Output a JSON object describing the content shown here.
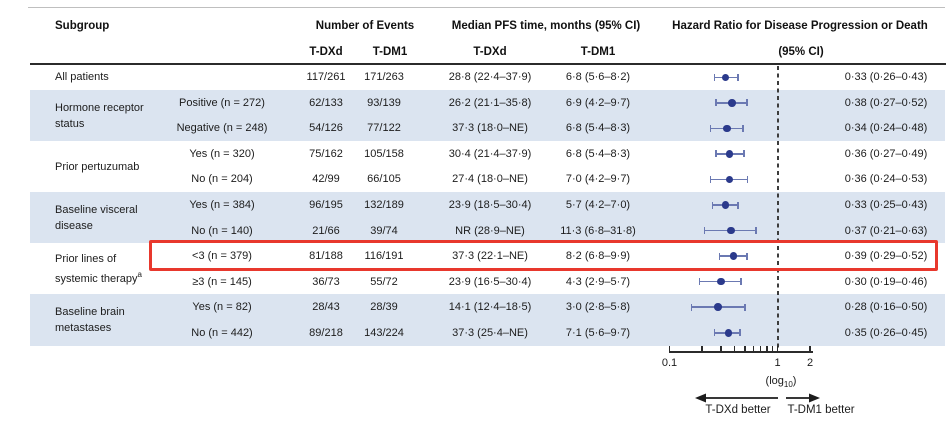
{
  "header": {
    "subgroup": "Subgroup",
    "events": "Number of Events",
    "median": "Median PFS time, months (95% CI)",
    "hazard": "Hazard Ratio for Disease Progression or Death",
    "hazard_ci": "(95% CI)",
    "col_tdxd": "T-DXd",
    "col_tdm1": "T-DM1"
  },
  "colors": {
    "row_shade": "#dbe4f0",
    "marker_navy": "#2b3a8c",
    "ci_line": "#6b79b2",
    "highlight_red": "#e8382d"
  },
  "chart_data": {
    "type": "scatter",
    "subtype": "forest-plot",
    "title": "Hazard Ratio for Disease Progression or Death",
    "x_axis": {
      "scale": "log10",
      "range": [
        0.1,
        2.2
      ],
      "ticks": [
        0.1,
        0.2,
        0.3,
        0.4,
        0.5,
        0.6,
        0.7,
        0.8,
        0.9,
        1,
        2
      ],
      "labeled_ticks": {
        "0.1": "0.1",
        "1": "1",
        "2": "2"
      },
      "scale_label_pre": "(log",
      "scale_label_sub": "10",
      "scale_label_post": ")",
      "reference_line": 1
    },
    "arrows": {
      "left_better": "T-DXd better",
      "right_better": "T-DM1 better"
    },
    "groups": [
      {
        "lines": [
          "All patients"
        ],
        "sup": "",
        "start": 0,
        "span": 1
      },
      {
        "lines": [
          "Hormone receptor",
          "status"
        ],
        "sup": "",
        "start": 1,
        "span": 2
      },
      {
        "lines": [
          "Prior pertuzumab"
        ],
        "sup": "",
        "start": 3,
        "span": 2
      },
      {
        "lines": [
          "Baseline visceral",
          "disease"
        ],
        "sup": "",
        "start": 5,
        "span": 2
      },
      {
        "lines": [
          "Prior lines of",
          "systemic therapy"
        ],
        "sup": "a",
        "start": 7,
        "span": 2
      },
      {
        "lines": [
          "Baseline brain",
          "metastases"
        ],
        "sup": "",
        "start": 9,
        "span": 2
      }
    ],
    "rows": [
      {
        "subgroup": "",
        "events_tdxd": "117/261",
        "events_tdm1": "171/263",
        "median_tdxd": "28·8 (22·4–37·9)",
        "median_tdm1": "6·8 (5·6–8·2)",
        "hr": 0.33,
        "ci_low": 0.26,
        "ci_high": 0.43,
        "hr_label": "0·33 (0·26–0·43)",
        "shaded": false,
        "highlighted": false
      },
      {
        "subgroup": "Positive (n = 272)",
        "events_tdxd": "62/133",
        "events_tdm1": "93/139",
        "median_tdxd": "26·2 (21·1–35·8)",
        "median_tdm1": "6·9 (4·2–9·7)",
        "hr": 0.38,
        "ci_low": 0.27,
        "ci_high": 0.52,
        "hr_label": "0·38 (0·27–0·52)",
        "shaded": true,
        "highlighted": false
      },
      {
        "subgroup": "Negative (n = 248)",
        "events_tdxd": "54/126",
        "events_tdm1": "77/122",
        "median_tdxd": "37·3 (18·0–NE)",
        "median_tdm1": "6·8 (5·4–8·3)",
        "hr": 0.34,
        "ci_low": 0.24,
        "ci_high": 0.48,
        "hr_label": "0·34 (0·24–0·48)",
        "shaded": true,
        "highlighted": false
      },
      {
        "subgroup": "Yes (n = 320)",
        "events_tdxd": "75/162",
        "events_tdm1": "105/158",
        "median_tdxd": "30·4 (21·4–37·9)",
        "median_tdm1": "6·8 (5·4–8·3)",
        "hr": 0.36,
        "ci_low": 0.27,
        "ci_high": 0.49,
        "hr_label": "0·36 (0·27–0·49)",
        "shaded": false,
        "highlighted": false
      },
      {
        "subgroup": "No (n = 204)",
        "events_tdxd": "42/99",
        "events_tdm1": "66/105",
        "median_tdxd": "27·4 (18·0–NE)",
        "median_tdm1": "7·0 (4·2–9·7)",
        "hr": 0.36,
        "ci_low": 0.24,
        "ci_high": 0.53,
        "hr_label": "0·36 (0·24–0·53)",
        "shaded": false,
        "highlighted": false
      },
      {
        "subgroup": "Yes (n = 384)",
        "events_tdxd": "96/195",
        "events_tdm1": "132/189",
        "median_tdxd": "23·9 (18·5–30·4)",
        "median_tdm1": "5·7 (4·2–7·0)",
        "hr": 0.33,
        "ci_low": 0.25,
        "ci_high": 0.43,
        "hr_label": "0·33 (0·25–0·43)",
        "shaded": true,
        "highlighted": false
      },
      {
        "subgroup": "No (n = 140)",
        "events_tdxd": "21/66",
        "events_tdm1": "39/74",
        "median_tdxd": "NR (28·9–NE)",
        "median_tdm1": "11·3 (6·8–31·8)",
        "hr": 0.37,
        "ci_low": 0.21,
        "ci_high": 0.63,
        "hr_label": "0·37 (0·21–0·63)",
        "shaded": true,
        "highlighted": false
      },
      {
        "subgroup": "<3 (n = 379)",
        "events_tdxd": "81/188",
        "events_tdm1": "116/191",
        "median_tdxd": "37·3 (22·1–NE)",
        "median_tdm1": "8·2 (6·8–9·9)",
        "hr": 0.39,
        "ci_low": 0.29,
        "ci_high": 0.52,
        "hr_label": "0·39 (0·29–0·52)",
        "shaded": false,
        "highlighted": true
      },
      {
        "subgroup": "≥3 (n = 145)",
        "events_tdxd": "36/73",
        "events_tdm1": "55/72",
        "median_tdxd": "23·9 (16·5–30·4)",
        "median_tdm1": "4·3 (2·9–5·7)",
        "hr": 0.3,
        "ci_low": 0.19,
        "ci_high": 0.46,
        "hr_label": "0·30 (0·19–0·46)",
        "shaded": false,
        "highlighted": false
      },
      {
        "subgroup": "Yes (n = 82)",
        "events_tdxd": "28/43",
        "events_tdm1": "28/39",
        "median_tdxd": "14·1 (12·4–18·5)",
        "median_tdm1": "3·0 (2·8–5·8)",
        "hr": 0.28,
        "ci_low": 0.16,
        "ci_high": 0.5,
        "hr_label": "0·28 (0·16–0·50)",
        "shaded": true,
        "highlighted": false
      },
      {
        "subgroup": "No (n = 442)",
        "events_tdxd": "89/218",
        "events_tdm1": "143/224",
        "median_tdxd": "37·3 (25·4–NE)",
        "median_tdm1": "7·1 (5·6–9·7)",
        "hr": 0.35,
        "ci_low": 0.26,
        "ci_high": 0.45,
        "hr_label": "0·35 (0·26–0·45)",
        "shaded": true,
        "highlighted": false
      }
    ]
  }
}
